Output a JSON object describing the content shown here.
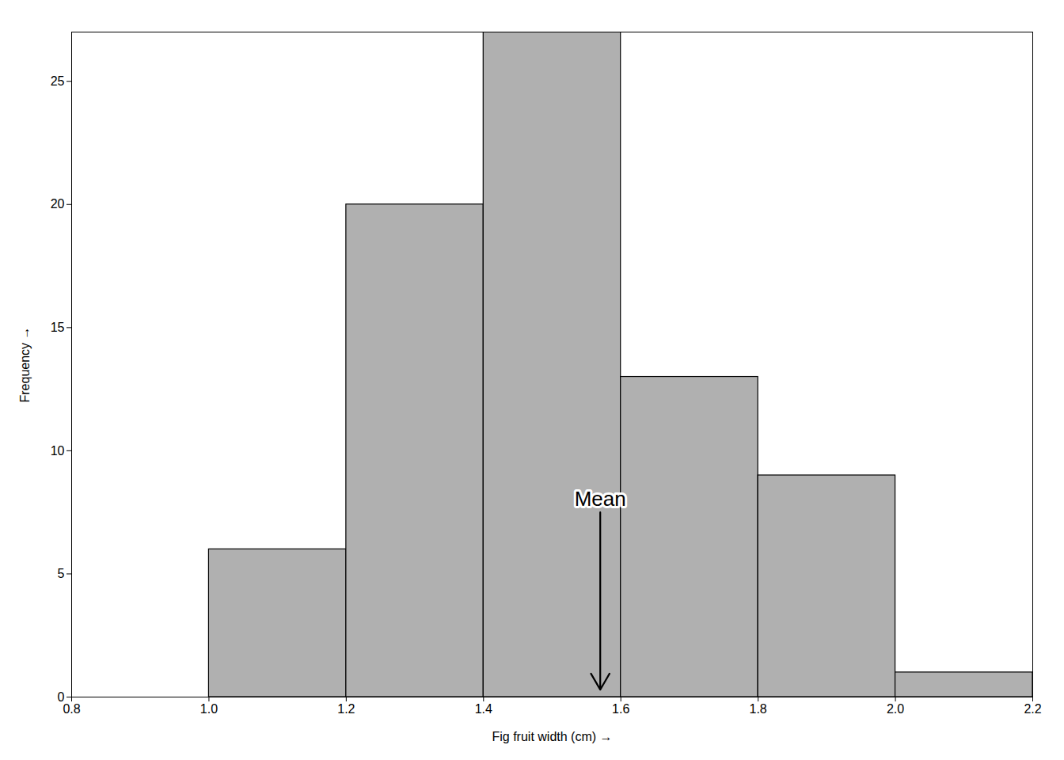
{
  "chart_data": {
    "type": "histogram",
    "bins": [
      1.0,
      1.2,
      1.4,
      1.6,
      1.8,
      2.0,
      2.2
    ],
    "values": [
      6,
      20,
      27,
      13,
      9,
      1
    ],
    "color": "#b0b0b0",
    "xlabel": "Fig fruit width (cm)",
    "ylabel": "Frequency",
    "xlim": [
      0.8,
      2.2
    ],
    "ylim": [
      0,
      27
    ],
    "xticks": [
      0.8,
      {
        "value": 1.0,
        "label": "1.0"
      },
      1.2,
      1.4,
      1.6,
      1.8,
      {
        "value": 2.0,
        "label": "2.0"
      },
      2.2
    ],
    "yticks": [
      0,
      5,
      10,
      15,
      20,
      25
    ],
    "grid": false,
    "annotations": [
      {
        "text": "Mean",
        "x": 1.57,
        "y": 7.5,
        "arrow_to_y": 0.3
      }
    ]
  }
}
